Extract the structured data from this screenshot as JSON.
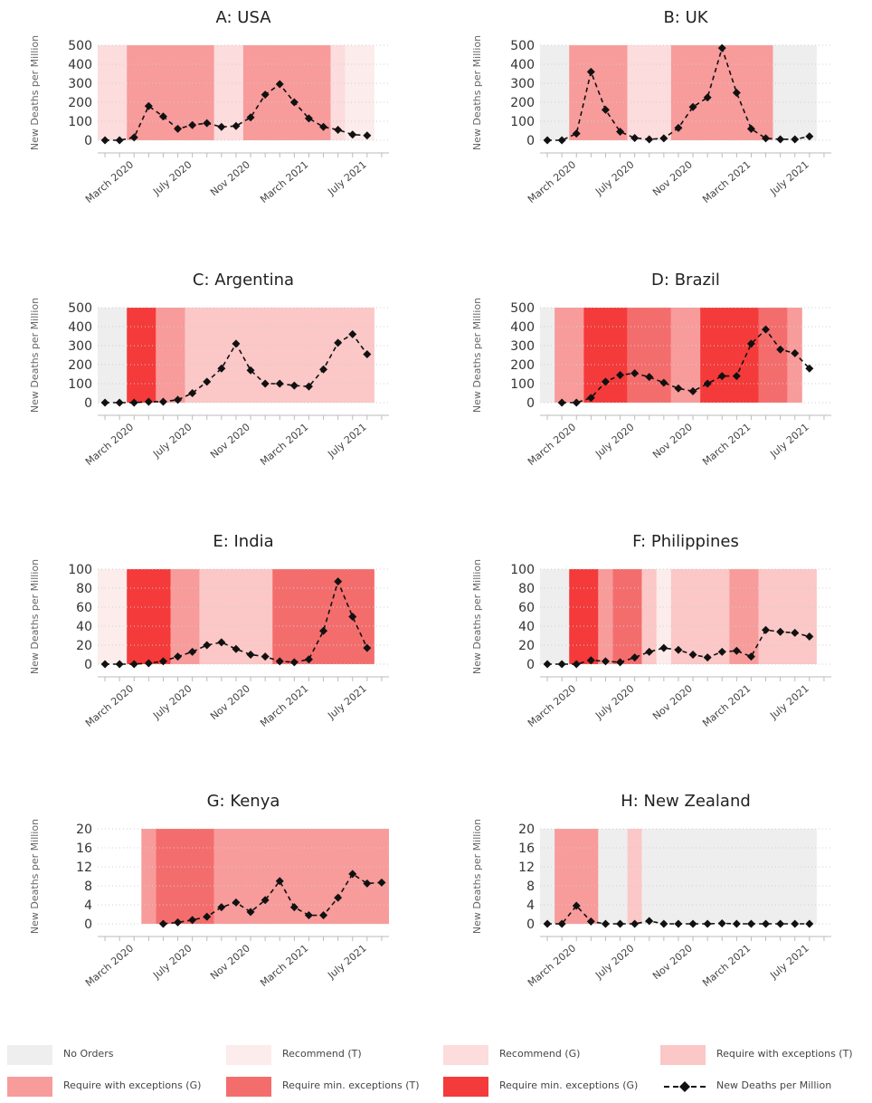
{
  "policy_levels": [
    {
      "key": "none",
      "label": "No Orders",
      "color": "#eeeeee"
    },
    {
      "key": "rec_t",
      "label": "Recommend (T)",
      "color": "#fcecec"
    },
    {
      "key": "rec_g",
      "label": "Recommend (G)",
      "color": "#fcdcdc"
    },
    {
      "key": "req_ex_t",
      "label": "Require with exceptions (T)",
      "color": "#fbc7c7"
    },
    {
      "key": "req_ex_g",
      "label": "Require with exceptions (G)",
      "color": "#f89b9b"
    },
    {
      "key": "req_min_t",
      "label": "Require  min. exceptions (T)",
      "color": "#f46d6d"
    },
    {
      "key": "req_min_g",
      "label": "Require min. exceptions (G)",
      "color": "#f43a3a"
    }
  ],
  "deaths_legend_label": "New Deaths per Million",
  "chart_data": [
    {
      "type": "line",
      "title": "A: USA",
      "ylabel": "New Deaths per Million",
      "ylim": [
        0,
        500
      ],
      "yticks": [
        0,
        100,
        200,
        300,
        400,
        500
      ],
      "xticks": [
        {
          "t": 2,
          "label": "March 2020"
        },
        {
          "t": 6,
          "label": "July 2020"
        },
        {
          "t": 10,
          "label": "Nov 2020"
        },
        {
          "t": 14,
          "label": "March 2021"
        },
        {
          "t": 18,
          "label": "July 2021"
        }
      ],
      "bands": [
        {
          "from": 0,
          "to": 2,
          "level": "rec_g"
        },
        {
          "from": 2,
          "to": 8,
          "level": "req_ex_g"
        },
        {
          "from": 8,
          "to": 10,
          "level": "rec_g"
        },
        {
          "from": 10,
          "to": 16,
          "level": "req_ex_g"
        },
        {
          "from": 16,
          "to": 17,
          "level": "rec_g"
        },
        {
          "from": 17,
          "to": 19,
          "level": "rec_t"
        }
      ],
      "x": [
        0,
        1,
        2,
        3,
        4,
        5,
        6,
        7,
        8,
        9,
        10,
        11,
        12,
        13,
        14,
        15,
        16,
        17,
        18
      ],
      "values": [
        0,
        0,
        15,
        180,
        125,
        60,
        80,
        90,
        70,
        75,
        120,
        240,
        295,
        200,
        115,
        70,
        55,
        30,
        25
      ]
    },
    {
      "type": "line",
      "title": "B: UK",
      "ylabel": "New Deaths per Million",
      "ylim": [
        0,
        500
      ],
      "yticks": [
        0,
        100,
        200,
        300,
        400,
        500
      ],
      "xticks": [
        {
          "t": 2,
          "label": "March 2020"
        },
        {
          "t": 6,
          "label": "July 2020"
        },
        {
          "t": 10,
          "label": "Nov 2020"
        },
        {
          "t": 14,
          "label": "March 2021"
        },
        {
          "t": 18,
          "label": "July 2021"
        }
      ],
      "bands": [
        {
          "from": 0,
          "to": 2,
          "level": "none"
        },
        {
          "from": 2,
          "to": 6,
          "level": "req_ex_g"
        },
        {
          "from": 6,
          "to": 9,
          "level": "rec_g"
        },
        {
          "from": 9,
          "to": 16,
          "level": "req_ex_g"
        },
        {
          "from": 16,
          "to": 19,
          "level": "none"
        }
      ],
      "x": [
        0,
        1,
        2,
        3,
        4,
        5,
        6,
        7,
        8,
        9,
        10,
        11,
        12,
        13,
        14,
        15,
        16,
        17,
        18
      ],
      "values": [
        0,
        0,
        35,
        360,
        160,
        45,
        12,
        5,
        10,
        65,
        175,
        225,
        485,
        250,
        60,
        10,
        5,
        5,
        20
      ]
    },
    {
      "type": "line",
      "title": "C: Argentina",
      "ylabel": "New Deaths per Million",
      "ylim": [
        0,
        500
      ],
      "yticks": [
        0,
        100,
        200,
        300,
        400,
        500
      ],
      "xticks": [
        {
          "t": 2,
          "label": "March 2020"
        },
        {
          "t": 6,
          "label": "July 2020"
        },
        {
          "t": 10,
          "label": "Nov 2020"
        },
        {
          "t": 14,
          "label": "March 2021"
        },
        {
          "t": 18,
          "label": "July 2021"
        }
      ],
      "bands": [
        {
          "from": 0,
          "to": 2,
          "level": "none"
        },
        {
          "from": 2,
          "to": 4,
          "level": "req_min_g"
        },
        {
          "from": 4,
          "to": 6,
          "level": "req_ex_g"
        },
        {
          "from": 6,
          "to": 19,
          "level": "req_ex_t"
        }
      ],
      "x": [
        0,
        1,
        2,
        3,
        4,
        5,
        6,
        7,
        8,
        9,
        10,
        11,
        12,
        13,
        14,
        15,
        16,
        17,
        18
      ],
      "values": [
        0,
        0,
        0,
        5,
        5,
        15,
        50,
        110,
        180,
        310,
        170,
        100,
        100,
        90,
        85,
        175,
        315,
        360,
        255
      ]
    },
    {
      "type": "line",
      "title": "D: Brazil",
      "ylabel": "New Deaths per Million",
      "ylim": [
        0,
        500
      ],
      "yticks": [
        0,
        100,
        200,
        300,
        400,
        500
      ],
      "xticks": [
        {
          "t": 2,
          "label": "March 2020"
        },
        {
          "t": 6,
          "label": "July 2020"
        },
        {
          "t": 10,
          "label": "Nov 2020"
        },
        {
          "t": 14,
          "label": "March 2021"
        },
        {
          "t": 18,
          "label": "July 2021"
        }
      ],
      "bands": [
        {
          "from": 0,
          "to": 1,
          "level": "none"
        },
        {
          "from": 1,
          "to": 3,
          "level": "req_ex_g"
        },
        {
          "from": 3,
          "to": 6,
          "level": "req_min_g"
        },
        {
          "from": 6,
          "to": 9,
          "level": "req_min_t"
        },
        {
          "from": 9,
          "to": 11,
          "level": "req_ex_g"
        },
        {
          "from": 11,
          "to": 15,
          "level": "req_min_g"
        },
        {
          "from": 15,
          "to": 17,
          "level": "req_min_t"
        },
        {
          "from": 17,
          "to": 18,
          "level": "req_ex_g"
        }
      ],
      "x": [
        1,
        2,
        3,
        4,
        5,
        6,
        7,
        8,
        9,
        10,
        11,
        12,
        13,
        14,
        15,
        16,
        17,
        18
      ],
      "values": [
        0,
        0,
        25,
        110,
        145,
        155,
        135,
        105,
        75,
        60,
        100,
        140,
        140,
        310,
        385,
        280,
        260,
        180
      ]
    },
    {
      "type": "line",
      "title": "E: India",
      "ylabel": "New Deaths per Million",
      "ylim": [
        0,
        100
      ],
      "yticks": [
        0,
        20,
        40,
        60,
        80,
        100
      ],
      "xticks": [
        {
          "t": 2,
          "label": "March 2020"
        },
        {
          "t": 6,
          "label": "July 2020"
        },
        {
          "t": 10,
          "label": "Nov 2020"
        },
        {
          "t": 14,
          "label": "March 2021"
        },
        {
          "t": 18,
          "label": "July 2021"
        }
      ],
      "bands": [
        {
          "from": 0,
          "to": 2,
          "level": "rec_t"
        },
        {
          "from": 2,
          "to": 5,
          "level": "req_min_g"
        },
        {
          "from": 5,
          "to": 7,
          "level": "req_ex_g"
        },
        {
          "from": 7,
          "to": 12,
          "level": "req_ex_t"
        },
        {
          "from": 12,
          "to": 19,
          "level": "req_min_t"
        }
      ],
      "x": [
        0,
        1,
        2,
        3,
        4,
        5,
        6,
        7,
        8,
        9,
        10,
        11,
        12,
        13,
        14,
        15,
        16,
        17,
        18
      ],
      "values": [
        0,
        0,
        0,
        1,
        3,
        8,
        13,
        20,
        23,
        16,
        10,
        8,
        3,
        2,
        5,
        35,
        87,
        50,
        17
      ]
    },
    {
      "type": "line",
      "title": "F: Philippines",
      "ylabel": "New Deaths per Million",
      "ylim": [
        0,
        100
      ],
      "yticks": [
        0,
        20,
        40,
        60,
        80,
        100
      ],
      "xticks": [
        {
          "t": 2,
          "label": "March 2020"
        },
        {
          "t": 6,
          "label": "July 2020"
        },
        {
          "t": 10,
          "label": "Nov 2020"
        },
        {
          "t": 14,
          "label": "March 2021"
        },
        {
          "t": 18,
          "label": "July 2021"
        }
      ],
      "bands": [
        {
          "from": 0,
          "to": 2,
          "level": "none"
        },
        {
          "from": 2,
          "to": 4,
          "level": "req_min_g"
        },
        {
          "from": 4,
          "to": 5,
          "level": "req_ex_g"
        },
        {
          "from": 5,
          "to": 7,
          "level": "req_min_t"
        },
        {
          "from": 7,
          "to": 8,
          "level": "req_ex_t"
        },
        {
          "from": 8,
          "to": 9,
          "level": "rec_t"
        },
        {
          "from": 9,
          "to": 13,
          "level": "req_ex_t"
        },
        {
          "from": 13,
          "to": 15,
          "level": "req_ex_g"
        },
        {
          "from": 15,
          "to": 19,
          "level": "req_ex_t"
        }
      ],
      "x": [
        0,
        1,
        2,
        3,
        4,
        5,
        6,
        7,
        8,
        9,
        10,
        11,
        12,
        13,
        14,
        15,
        16,
        17,
        18
      ],
      "values": [
        0,
        0,
        0,
        4,
        3,
        2,
        7,
        13,
        17,
        15,
        10,
        7,
        13,
        14,
        8,
        36,
        34,
        33,
        29
      ]
    },
    {
      "type": "line",
      "title": "G: Kenya",
      "ylabel": "New Deaths per Million",
      "ylim": [
        0,
        20
      ],
      "yticks": [
        0,
        4,
        8,
        12,
        16,
        20
      ],
      "xticks": [
        {
          "t": 2,
          "label": "March 2020"
        },
        {
          "t": 6,
          "label": "July 2020"
        },
        {
          "t": 10,
          "label": "Nov 2020"
        },
        {
          "t": 14,
          "label": "March 2021"
        },
        {
          "t": 18,
          "label": "July 2021"
        }
      ],
      "bands": [
        {
          "from": 3,
          "to": 4,
          "level": "req_ex_g"
        },
        {
          "from": 4,
          "to": 8,
          "level": "req_min_t"
        },
        {
          "from": 8,
          "to": 20,
          "level": "req_ex_g"
        }
      ],
      "x": [
        4,
        5,
        6,
        7,
        8,
        9,
        10,
        11,
        12,
        13,
        14,
        15,
        16,
        17,
        18,
        19
      ],
      "values": [
        0,
        0.3,
        0.8,
        1.5,
        3.5,
        4.5,
        2.5,
        5,
        9,
        3.5,
        1.8,
        1.8,
        5.5,
        10.5,
        8.5,
        8.7
      ]
    },
    {
      "type": "line",
      "title": "H: New Zealand",
      "ylabel": "New Deaths per Million",
      "ylim": [
        0,
        20
      ],
      "yticks": [
        0,
        4,
        8,
        12,
        16,
        20
      ],
      "xticks": [
        {
          "t": 2,
          "label": "March 2020"
        },
        {
          "t": 6,
          "label": "July 2020"
        },
        {
          "t": 10,
          "label": "Nov 2020"
        },
        {
          "t": 14,
          "label": "March 2021"
        },
        {
          "t": 18,
          "label": "July 2021"
        }
      ],
      "bands": [
        {
          "from": 0,
          "to": 1,
          "level": "none"
        },
        {
          "from": 1,
          "to": 4,
          "level": "req_ex_g"
        },
        {
          "from": 4,
          "to": 6,
          "level": "none"
        },
        {
          "from": 6,
          "to": 7,
          "level": "req_ex_t"
        },
        {
          "from": 7,
          "to": 19,
          "level": "none"
        }
      ],
      "x": [
        0,
        1,
        2,
        3,
        4,
        5,
        6,
        7,
        8,
        9,
        10,
        11,
        12,
        13,
        14,
        15,
        16,
        17,
        18
      ],
      "values": [
        0,
        0,
        3.8,
        0.5,
        0,
        0,
        0,
        0.6,
        0,
        0,
        0,
        0,
        0.1,
        0,
        0,
        0,
        0,
        0,
        0
      ]
    }
  ]
}
